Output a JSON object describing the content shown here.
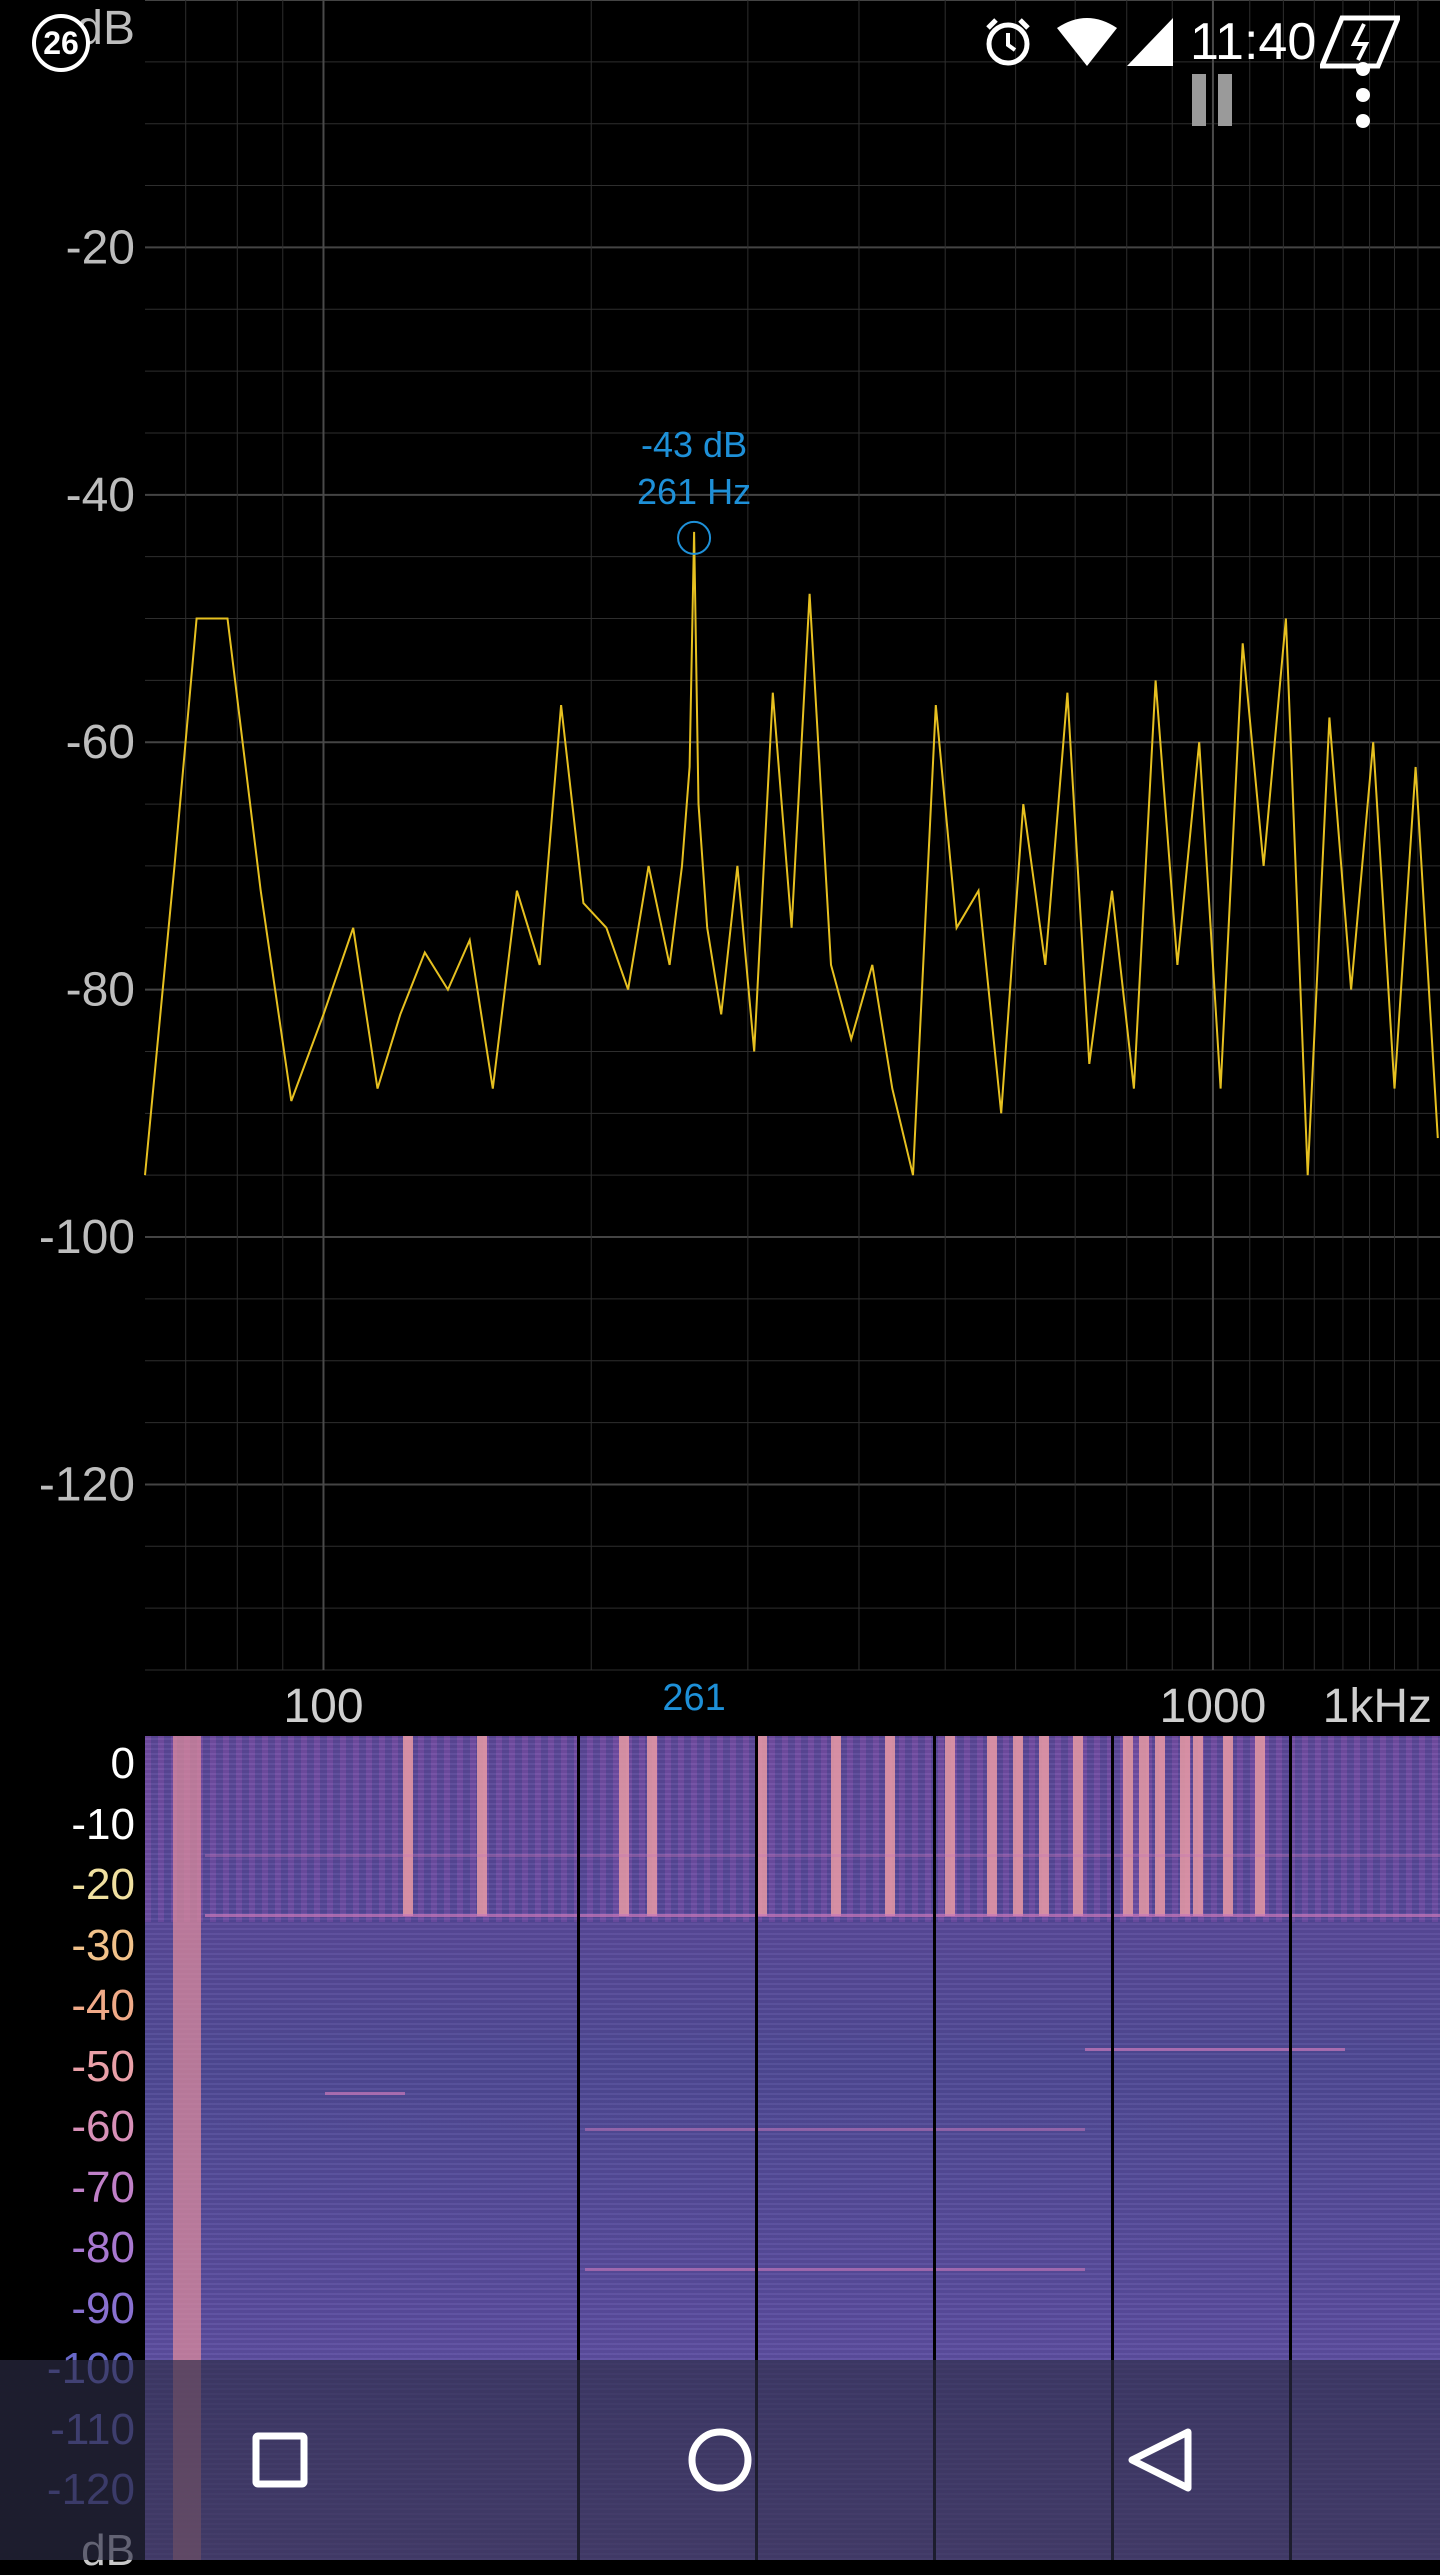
{
  "status_bar": {
    "notification_count": "26",
    "time": "11:40",
    "icons": [
      "alarm-icon",
      "wifi-icon",
      "cell-signal-icon",
      "battery-charging-icon"
    ]
  },
  "toolbar": {
    "pause_icon": "pause-icon",
    "menu_icon": "more-vert-icon"
  },
  "spectrum": {
    "db_axis_labels": [
      "dB",
      "-20",
      "-40",
      "-60",
      "-80",
      "-100",
      "-120"
    ],
    "freq_axis_labels": [
      "100",
      "261",
      "1000",
      "1kHz"
    ],
    "peak": {
      "level": "-43 dB",
      "frequency": "261 Hz"
    }
  },
  "spectrogram": {
    "scale_labels": [
      "0",
      "-10",
      "-20",
      "-30",
      "-40",
      "-50",
      "-60",
      "-70",
      "-80",
      "-90",
      "-100",
      "-110",
      "-120",
      "dB"
    ],
    "scale_colors": [
      "#ffffff",
      "#ffffff",
      "#f0e0a0",
      "#f2c28a",
      "#f0aa88",
      "#eaa0a8",
      "#d890b8",
      "#c080c8",
      "#a878d0",
      "#8870d0",
      "#6868c8",
      "#6060b8",
      "#5858a8",
      "#c8c8c8"
    ]
  },
  "nav_bar": {
    "recents_icon": "recents-icon",
    "home_icon": "home-icon",
    "back_icon": "back-icon"
  },
  "colors": {
    "spectrum_line": "#e6c020",
    "peak_marker": "#1e90d8",
    "grid": "#2e2e2e",
    "background": "#000000"
  },
  "chart_data": {
    "type": "line",
    "title": "",
    "xlabel": "",
    "ylabel": "dB",
    "x_scale": "log",
    "xlim": [
      63,
      1800
    ],
    "ylim": [
      -135,
      0
    ],
    "x_ticks": [
      100,
      261,
      1000
    ],
    "y_ticks": [
      -20,
      -40,
      -60,
      -80,
      -100,
      -120
    ],
    "grid": true,
    "series": [
      {
        "x": [
          63,
          68,
          72,
          78,
          85,
          92,
          100,
          108,
          115,
          122,
          130,
          138,
          146,
          155,
          165,
          175,
          185,
          196,
          208,
          220,
          232,
          245,
          253,
          258,
          261,
          264,
          270,
          280,
          292,
          305,
          320,
          336,
          352,
          372,
          392,
          414,
          436,
          460,
          488,
          515,
          545,
          578,
          612,
          648,
          686,
          726,
          770,
          815,
          862,
          912,
          965,
          1020,
          1080,
          1140,
          1208,
          1278,
          1352,
          1430,
          1514,
          1600,
          1690,
          1790
        ],
        "y": [
          -95,
          -70,
          -50,
          -50,
          -72,
          -89,
          -82,
          -75,
          -88,
          -82,
          -77,
          -80,
          -76,
          -88,
          -72,
          -78,
          -57,
          -73,
          -75,
          -80,
          -70,
          -78,
          -70,
          -62,
          -43,
          -65,
          -75,
          -82,
          -70,
          -85,
          -56,
          -75,
          -48,
          -78,
          -84,
          -78,
          -88,
          -95,
          -57,
          -75,
          -72,
          -90,
          -65,
          -78,
          -56,
          -86,
          -72,
          -88,
          -55,
          -78,
          -60,
          -88,
          -52,
          -70,
          -50,
          -95,
          -58,
          -80,
          -60,
          -88,
          -62,
          -92
        ]
      }
    ]
  }
}
